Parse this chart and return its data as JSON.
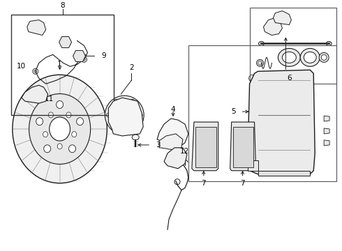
{
  "bg_color": "#ffffff",
  "line_color": "#1a1a1a",
  "box_color": "#555555",
  "fig_width": 4.9,
  "fig_height": 3.6,
  "dpi": 100
}
